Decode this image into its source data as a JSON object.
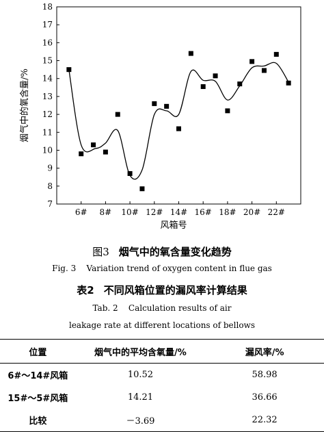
{
  "chart_data": {
    "type": "scatter",
    "xlabel": "风箱号",
    "ylabel": "烟气中的氧含量/%",
    "ylim": [
      7,
      18
    ],
    "xlim": [
      4,
      24
    ],
    "yticks": [
      7,
      8,
      9,
      10,
      11,
      12,
      13,
      14,
      15,
      16,
      17,
      18
    ],
    "xticks": [
      {
        "x": 6,
        "label": "6#"
      },
      {
        "x": 8,
        "label": "8#"
      },
      {
        "x": 10,
        "label": "10#"
      },
      {
        "x": 12,
        "label": "12#"
      },
      {
        "x": 14,
        "label": "14#"
      },
      {
        "x": 16,
        "label": "16#"
      },
      {
        "x": 18,
        "label": "18#"
      },
      {
        "x": 20,
        "label": "20#"
      },
      {
        "x": 22,
        "label": "22#"
      }
    ],
    "points": [
      [
        5,
        14.5
      ],
      [
        6,
        9.8
      ],
      [
        7,
        10.3
      ],
      [
        8,
        9.9
      ],
      [
        9,
        12.0
      ],
      [
        10,
        8.7
      ],
      [
        11,
        7.85
      ],
      [
        12,
        12.6
      ],
      [
        13,
        12.45
      ],
      [
        14,
        11.2
      ],
      [
        15,
        15.4
      ],
      [
        16,
        13.55
      ],
      [
        17,
        14.15
      ],
      [
        18,
        12.2
      ],
      [
        19,
        13.7
      ],
      [
        20,
        14.95
      ],
      [
        21,
        14.45
      ],
      [
        22,
        15.35
      ],
      [
        23,
        13.75
      ]
    ],
    "curve": [
      [
        5,
        14.5
      ],
      [
        6,
        10.3
      ],
      [
        7.2,
        10.1
      ],
      [
        8,
        10.4
      ],
      [
        9,
        11.1
      ],
      [
        10,
        8.6
      ],
      [
        11,
        8.9
      ],
      [
        12,
        12.0
      ],
      [
        13,
        12.2
      ],
      [
        14,
        12.0
      ],
      [
        15,
        14.4
      ],
      [
        16,
        13.9
      ],
      [
        17,
        13.85
      ],
      [
        18,
        12.8
      ],
      [
        19,
        13.6
      ],
      [
        20,
        14.6
      ],
      [
        21,
        14.7
      ],
      [
        22,
        14.85
      ],
      [
        23,
        13.8
      ]
    ]
  },
  "figure_caption": {
    "zh_label": "图3",
    "zh_title": "烟气中的氧含量变化趋势",
    "en": "Fig. 3    Variation trend of oxygen content in flue gas"
  },
  "table_caption": {
    "zh_label": "表2",
    "zh_title": "不同风箱位置的漏风率计算结果",
    "en_line1": "Tab. 2    Calculation results of air",
    "en_line2": "leakage rate at different locations of bellows"
  },
  "table": {
    "headers": [
      "位置",
      "烟气中的平均含氧量/%",
      "漏风率/%"
    ],
    "rows": [
      [
        "6#～14#风箱",
        "10.52",
        "58.98"
      ],
      [
        "15#～5#风箱",
        "14.21",
        "36.66"
      ],
      [
        "比较",
        "－3.69",
        "22.32"
      ]
    ]
  }
}
